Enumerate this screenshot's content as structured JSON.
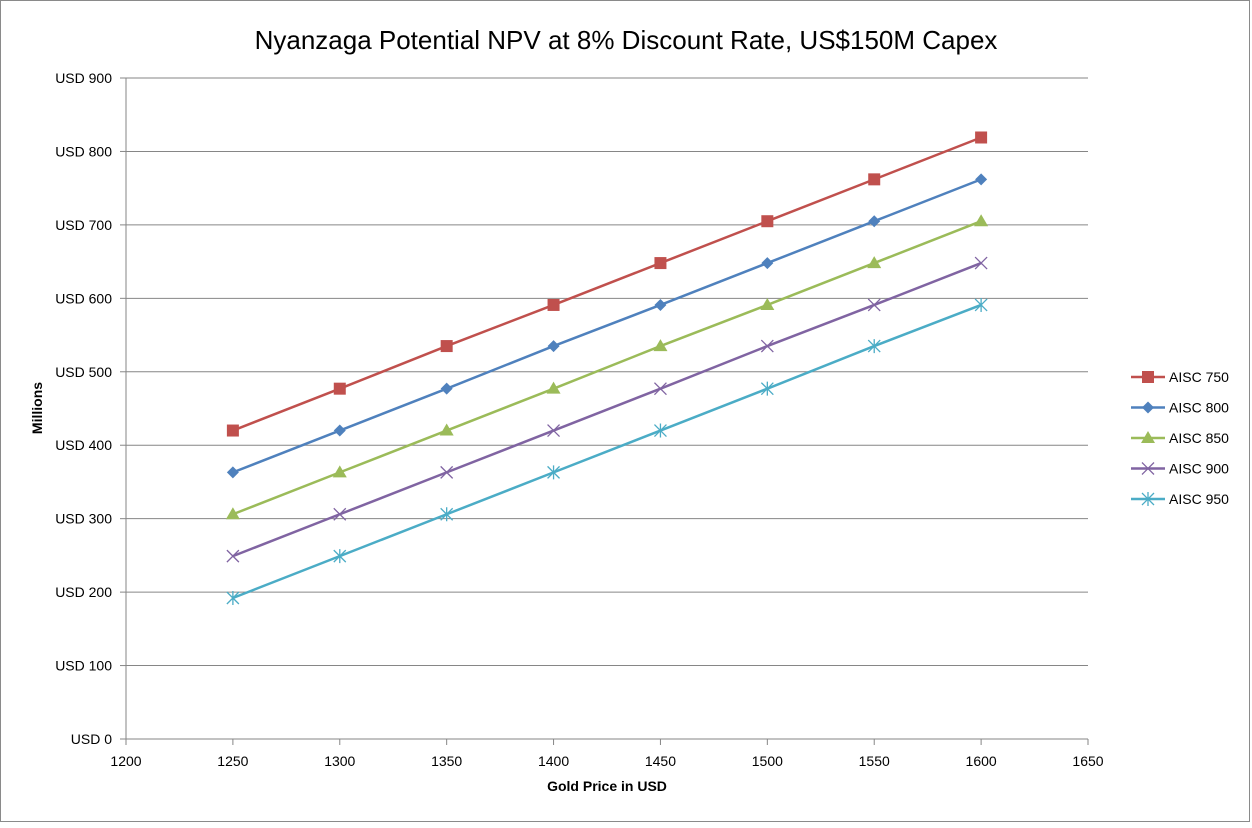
{
  "chart_data": {
    "type": "line",
    "title": "Nyanzaga Potential NPV at 8% Discount Rate, US$150M Capex",
    "xlabel": "Gold Price in USD",
    "ylabel": "Millions",
    "xlim": [
      1200,
      1650
    ],
    "ylim": [
      0,
      900
    ],
    "x_ticks": [
      "1200",
      "1250",
      "1300",
      "1350",
      "1400",
      "1450",
      "1500",
      "1550",
      "1600",
      "1650"
    ],
    "y_ticks": [
      "USD 0",
      "USD 100",
      "USD 200",
      "USD 300",
      "USD 400",
      "USD 500",
      "USD 600",
      "USD 700",
      "USD 800",
      "USD 900"
    ],
    "grid": "horizontal",
    "legend_position": "right",
    "x": [
      1250,
      1300,
      1350,
      1400,
      1450,
      1500,
      1550,
      1600
    ],
    "series": [
      {
        "name": "AISC 750",
        "color": "#C0504D",
        "marker": "square",
        "values": [
          420,
          477,
          535,
          591,
          648,
          705,
          762,
          819
        ]
      },
      {
        "name": "AISC 800",
        "color": "#4F81BD",
        "marker": "diamond",
        "values": [
          363,
          420,
          477,
          535,
          591,
          648,
          705,
          762
        ]
      },
      {
        "name": "AISC 850",
        "color": "#9BBB59",
        "marker": "triangle",
        "values": [
          306,
          363,
          420,
          477,
          535,
          591,
          648,
          705
        ]
      },
      {
        "name": "AISC 900",
        "color": "#8064A2",
        "marker": "x",
        "values": [
          249,
          306,
          363,
          420,
          477,
          535,
          591,
          648
        ]
      },
      {
        "name": "AISC 950",
        "color": "#4BACC6",
        "marker": "star",
        "values": [
          192,
          249,
          306,
          363,
          420,
          477,
          535,
          591
        ]
      }
    ]
  }
}
